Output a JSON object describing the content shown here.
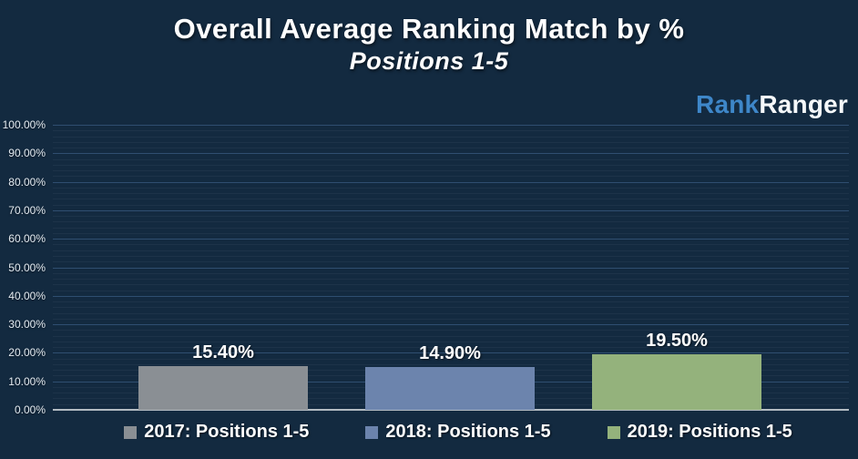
{
  "page": {
    "background_color": "#132a40",
    "text_color": "#ffffff"
  },
  "header": {
    "title": "Overall Average Ranking Match by %",
    "subtitle": "Positions 1-5"
  },
  "logo": {
    "part1": "Rank",
    "part2": "Ranger",
    "part1_color": "#3e87c9",
    "part2_color": "#f5f8fa"
  },
  "chart_data": {
    "type": "bar",
    "title": "Overall Average Ranking Match by %",
    "subtitle": "Positions 1-5",
    "categories": [
      "2017: Positions 1-5",
      "2018: Positions 1-5",
      "2019: Positions 1-5"
    ],
    "values": [
      15.4,
      14.9,
      19.5
    ],
    "value_labels": [
      "15.40%",
      "14.90%",
      "19.50%"
    ],
    "bar_colors": [
      "#8a8f94",
      "#6c84ad",
      "#94b27c"
    ],
    "xlabel": "",
    "ylabel": "",
    "ylim": [
      0,
      100
    ],
    "y_major_step": 10,
    "y_minor_step": 2,
    "y_tick_labels": [
      "0.00%",
      "10.00%",
      "20.00%",
      "30.00%",
      "40.00%",
      "50.00%",
      "60.00%",
      "70.00%",
      "80.00%",
      "90.00%",
      "100.00%"
    ],
    "grid": "on",
    "grid_minor_color": "#1d3349",
    "grid_major_color": "#2f4e70",
    "axis_line_color": "#b3bbc2",
    "tick_label_color": "#e3eaf0",
    "legend_position": "bottom",
    "legend": [
      {
        "label": "2017: Positions 1-5",
        "color": "#8a8f94"
      },
      {
        "label": "2018: Positions 1-5",
        "color": "#6c84ad"
      },
      {
        "label": "2019: Positions 1-5",
        "color": "#94b27c"
      }
    ]
  }
}
